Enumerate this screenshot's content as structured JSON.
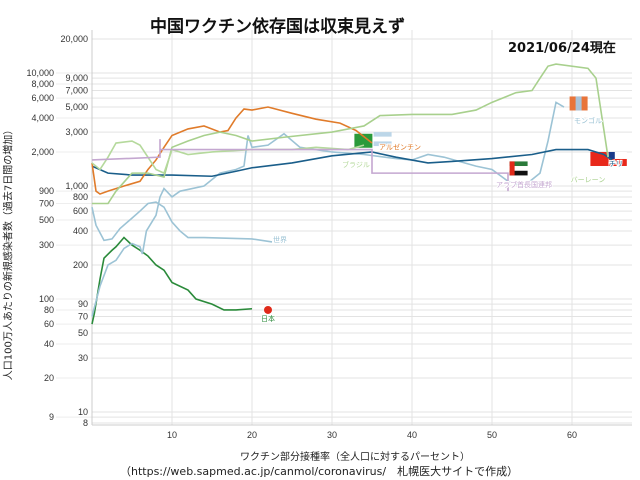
{
  "chart_data": {
    "type": "line",
    "title": "中国ワクチン依存国は収束見えず",
    "date_label": "2021/06/24現在",
    "xlabel": "ワクチン部分接種率（全人口に対するパーセント）",
    "ylabel": "人口100万人あたりの新規感染者数（過去7日間の増加）",
    "source": "（https://web.sapmed.ac.jp/canmol/coronavirus/　札幌医大サイトで作成）",
    "xlim": [
      0,
      66
    ],
    "ylim": [
      8,
      20000
    ],
    "yscale": "log",
    "xticks": [
      10,
      20,
      30,
      40,
      50,
      60
    ],
    "yticks": [
      {
        "v": 8,
        "l": "8"
      },
      {
        "v": 9,
        "l": "9"
      },
      {
        "v": 10,
        "l": "10"
      },
      {
        "v": 20,
        "l": "20"
      },
      {
        "v": 30,
        "l": "30"
      },
      {
        "v": 40,
        "l": "40"
      },
      {
        "v": 50,
        "l": "50"
      },
      {
        "v": 60,
        "l": "60"
      },
      {
        "v": 70,
        "l": "70"
      },
      {
        "v": 80,
        "l": "80"
      },
      {
        "v": 90,
        "l": "90"
      },
      {
        "v": 100,
        "l": "100"
      },
      {
        "v": 200,
        "l": "200"
      },
      {
        "v": 300,
        "l": "300"
      },
      {
        "v": 400,
        "l": "400"
      },
      {
        "v": 500,
        "l": "500"
      },
      {
        "v": 600,
        "l": "600"
      },
      {
        "v": 700,
        "l": "700"
      },
      {
        "v": 800,
        "l": "800"
      },
      {
        "v": 900,
        "l": "900"
      },
      {
        "v": 1000,
        "l": "1,000"
      },
      {
        "v": 2000,
        "l": "2,000"
      },
      {
        "v": 3000,
        "l": "3,000"
      },
      {
        "v": 4000,
        "l": "4,000"
      },
      {
        "v": 5000,
        "l": "5,000"
      },
      {
        "v": 6000,
        "l": "6,000"
      },
      {
        "v": 7000,
        "l": "7,000"
      },
      {
        "v": 8000,
        "l": "8,000"
      },
      {
        "v": 9000,
        "l": "9,000"
      },
      {
        "v": 10000,
        "l": "10,000"
      },
      {
        "v": 20000,
        "l": "20,000"
      }
    ],
    "grid": true,
    "series": [
      {
        "name": "日本",
        "color": "#2a8a3a",
        "label_at": [
          22,
          64
        ],
        "points": [
          [
            0,
            60
          ],
          [
            0.3,
            75
          ],
          [
            1,
            150
          ],
          [
            1.5,
            230
          ],
          [
            2.5,
            270
          ],
          [
            3,
            290
          ],
          [
            4,
            350
          ],
          [
            5,
            300
          ],
          [
            6,
            270
          ],
          [
            7,
            240
          ],
          [
            8,
            200
          ],
          [
            9,
            180
          ],
          [
            10,
            140
          ],
          [
            12,
            120
          ],
          [
            13,
            100
          ],
          [
            15,
            90
          ],
          [
            16.5,
            80
          ],
          [
            18,
            80
          ],
          [
            20,
            82
          ]
        ]
      },
      {
        "name": "世界",
        "color": "#9cc3d5",
        "label_at": [
          23.5,
          320
        ],
        "points": [
          [
            0,
            650
          ],
          [
            0.5,
            450
          ],
          [
            1.5,
            330
          ],
          [
            2.5,
            340
          ],
          [
            3.5,
            420
          ],
          [
            5,
            520
          ],
          [
            6,
            600
          ],
          [
            7,
            700
          ],
          [
            8,
            720
          ],
          [
            9,
            650
          ],
          [
            10,
            480
          ],
          [
            11,
            400
          ],
          [
            12,
            350
          ],
          [
            14,
            350
          ],
          [
            20,
            340
          ],
          [
            22.5,
            320
          ]
        ]
      },
      {
        "name": "モンゴル",
        "color": "#9cc3d5",
        "label_at": [
          62,
          3600
        ],
        "points": [
          [
            0,
            70
          ],
          [
            1,
            130
          ],
          [
            2,
            200
          ],
          [
            3,
            220
          ],
          [
            4,
            280
          ],
          [
            5,
            310
          ],
          [
            6,
            290
          ],
          [
            6.3,
            250
          ],
          [
            6.8,
            400
          ],
          [
            8,
            550
          ],
          [
            8.5,
            800
          ],
          [
            9,
            950
          ],
          [
            10,
            800
          ],
          [
            11,
            900
          ],
          [
            14,
            1000
          ],
          [
            16,
            1300
          ],
          [
            18,
            1400
          ],
          [
            19,
            1500
          ],
          [
            19.5,
            2800
          ],
          [
            20,
            2200
          ],
          [
            22,
            2300
          ],
          [
            24,
            2900
          ],
          [
            26,
            2200
          ],
          [
            30,
            2000
          ],
          [
            34,
            1900
          ],
          [
            38,
            1750
          ],
          [
            40,
            1700
          ],
          [
            42,
            1900
          ],
          [
            44,
            1800
          ],
          [
            48,
            1500
          ],
          [
            50,
            1400
          ],
          [
            52,
            1100
          ],
          [
            54,
            1000
          ],
          [
            56,
            1300
          ],
          [
            57,
            2500
          ],
          [
            58,
            5500
          ],
          [
            59,
            5000
          ]
        ]
      },
      {
        "name": "チリ",
        "color": "#1a5e8a",
        "label_at": [
          65,
          1500
        ],
        "points": [
          [
            0,
            1500
          ],
          [
            2,
            1300
          ],
          [
            5,
            1250
          ],
          [
            10,
            1250
          ],
          [
            15,
            1220
          ],
          [
            18,
            1350
          ],
          [
            20,
            1450
          ],
          [
            25,
            1600
          ],
          [
            30,
            1850
          ],
          [
            35,
            2000
          ],
          [
            38,
            1800
          ],
          [
            42,
            1600
          ],
          [
            45,
            1650
          ],
          [
            50,
            1750
          ],
          [
            55,
            1900
          ],
          [
            58,
            2100
          ],
          [
            62,
            2100
          ],
          [
            64,
            1900
          ],
          [
            65,
            1700
          ]
        ]
      },
      {
        "name": "アルゼンチン",
        "color": "#e07b2a",
        "label_at": [
          37.5,
          2100
        ],
        "points": [
          [
            0,
            1600
          ],
          [
            0.5,
            900
          ],
          [
            1,
            850
          ],
          [
            2,
            900
          ],
          [
            4,
            1000
          ],
          [
            6,
            1100
          ],
          [
            7,
            1400
          ],
          [
            8,
            1700
          ],
          [
            9,
            2200
          ],
          [
            10,
            2800
          ],
          [
            12,
            3200
          ],
          [
            14,
            3400
          ],
          [
            16,
            3000
          ],
          [
            17,
            3100
          ],
          [
            18,
            4000
          ],
          [
            19,
            4800
          ],
          [
            20,
            4700
          ],
          [
            22,
            5000
          ],
          [
            25,
            4400
          ],
          [
            28,
            3900
          ],
          [
            31,
            3600
          ],
          [
            33,
            3100
          ],
          [
            35,
            2400
          ]
        ]
      },
      {
        "name": "バーレーン",
        "color": "#a8d08d",
        "label_at": [
          63,
          1450
        ],
        "points": [
          [
            0,
            700
          ],
          [
            2,
            700
          ],
          [
            3,
            900
          ],
          [
            5,
            1300
          ],
          [
            7,
            1300
          ],
          [
            9,
            1200
          ],
          [
            10,
            2200
          ],
          [
            12,
            2500
          ],
          [
            14,
            2800
          ],
          [
            16,
            3000
          ],
          [
            18,
            2800
          ],
          [
            20,
            2500
          ],
          [
            24,
            2700
          ],
          [
            30,
            3000
          ],
          [
            34,
            3400
          ],
          [
            36,
            4200
          ],
          [
            40,
            4300
          ],
          [
            45,
            4300
          ],
          [
            48,
            4700
          ],
          [
            50,
            5500
          ],
          [
            53,
            6700
          ],
          [
            55,
            7000
          ],
          [
            56,
            9000
          ],
          [
            57,
            11500
          ],
          [
            58,
            12000
          ],
          [
            62,
            11000
          ],
          [
            63,
            9000
          ],
          [
            64.5,
            1800
          ]
        ]
      },
      {
        "name": "ブラジル",
        "color": "#b5d99c",
        "label_at": [
          35,
          1800
        ],
        "points": [
          [
            0,
            1600
          ],
          [
            1,
            1400
          ],
          [
            2,
            1800
          ],
          [
            3,
            2400
          ],
          [
            5,
            2500
          ],
          [
            6,
            2300
          ],
          [
            8,
            1400
          ],
          [
            9,
            1300
          ],
          [
            10,
            2100
          ],
          [
            12,
            1900
          ],
          [
            15,
            2000
          ],
          [
            20,
            2100
          ],
          [
            25,
            2100
          ],
          [
            28,
            2200
          ],
          [
            32,
            2100
          ],
          [
            34,
            2300
          ]
        ]
      },
      {
        "name": "アラブ首長国連邦",
        "color": "#c4a7d0",
        "label_at": [
          55,
          1000
        ],
        "points": [
          [
            0,
            1700
          ],
          [
            8.5,
            1800
          ],
          [
            8.5,
            2600
          ],
          [
            8.5,
            2100
          ],
          [
            35,
            2100
          ],
          [
            35,
            1300
          ],
          [
            52,
            1300
          ],
          [
            52,
            900
          ]
        ]
      }
    ],
    "markers": [
      {
        "name": "japan-dot",
        "x": 22,
        "y": 80,
        "color": "#e02a1a"
      }
    ]
  }
}
